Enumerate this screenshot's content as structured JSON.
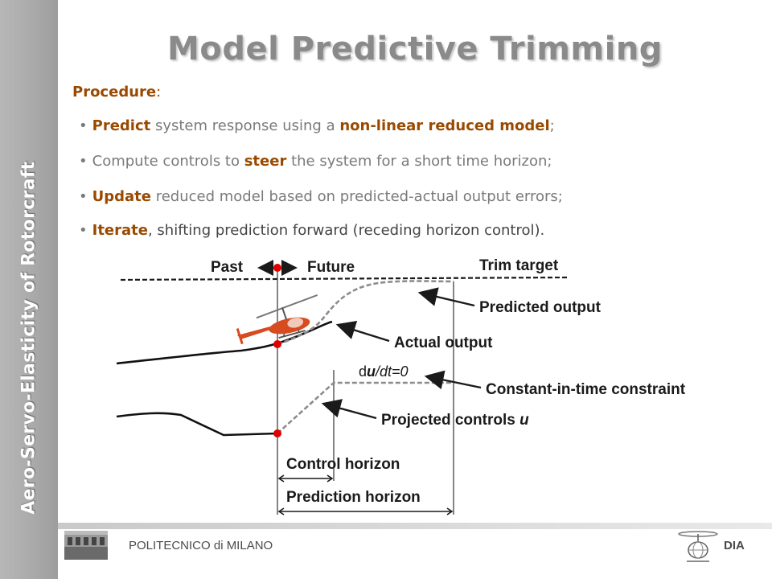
{
  "sidebar": {
    "text": "Aero-Servo-Elasticity of Rotorcraft"
  },
  "title": "Model Predictive Trimming",
  "procedure": {
    "label": "Procedure",
    "colon": ":"
  },
  "bullets": [
    {
      "parts": [
        {
          "t": "Predict"
        },
        {
          "t": " system response using a "
        },
        {
          "t": "non-linear reduced model"
        },
        {
          "t": ";"
        }
      ]
    },
    {
      "parts": [
        {
          "t": "Compute controls to "
        },
        {
          "t": "steer"
        },
        {
          "t": " the system for a short time horizon;"
        }
      ]
    },
    {
      "parts": [
        {
          "t": "Update"
        },
        {
          "t": " reduced model based on predicted-actual output errors;"
        }
      ]
    },
    {
      "parts": [
        {
          "t": "Iterate"
        },
        {
          "t": ", shifting prediction forward (receding horizon control)."
        }
      ]
    }
  ],
  "diagram": {
    "past": "Past",
    "future": "Future",
    "trim_target": "Trim target",
    "predicted_output": "Predicted output",
    "actual_output": "Actual output",
    "dudt_d": "d",
    "dudt_u": "u",
    "dudt_rest": "/dt=0",
    "constant_constraint": "Constant-in-time constraint",
    "projected_controls": "Projected controls ",
    "projected_controls_u": "u",
    "control_horizon": "Control horizon",
    "prediction_horizon": "Prediction horizon"
  },
  "footer": {
    "left": "POLITECNICO di MILANO",
    "right": "DIA"
  },
  "colors": {
    "accent": "#9a4a00",
    "text_gray": "#7a7a7a",
    "sidebar": "#a9a9a9",
    "marker": "#e00000"
  },
  "icons": {
    "building": "building-photo-icon",
    "logo": "helicopter-logo-icon",
    "helicopter": "helicopter-icon"
  }
}
